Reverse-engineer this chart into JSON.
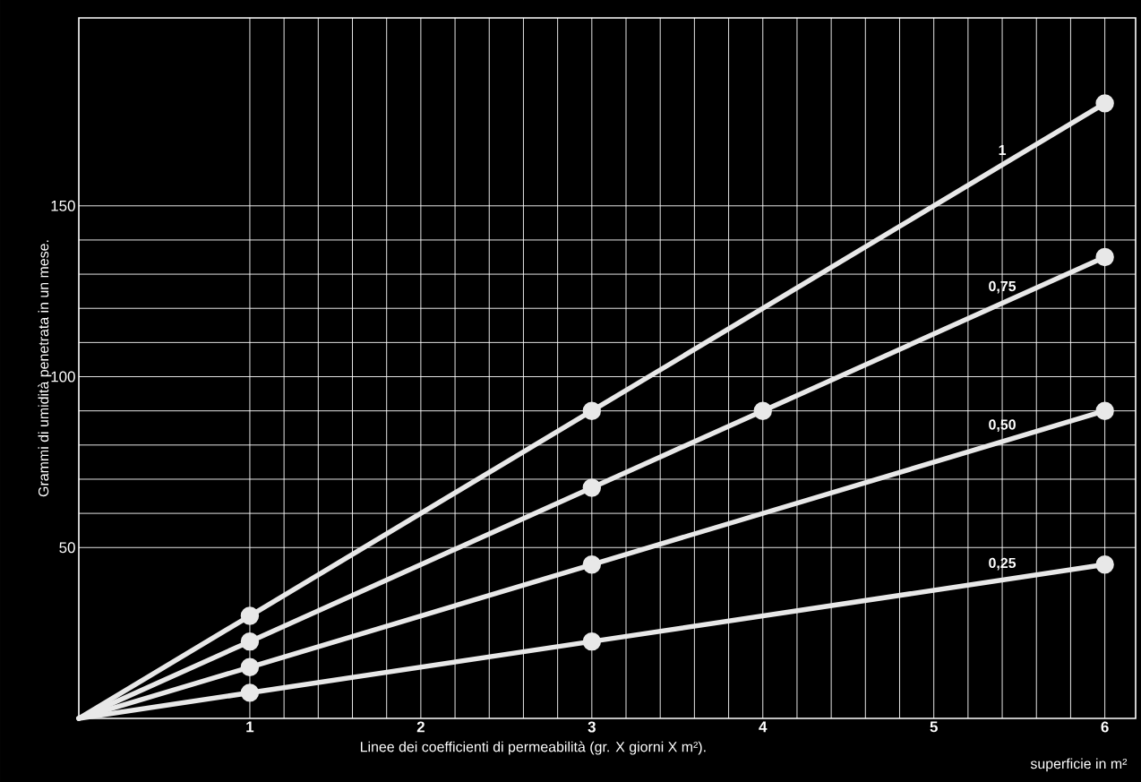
{
  "chart_data": {
    "type": "line",
    "ylabel": "Grammi di umidità penetrata in un mese.",
    "xlabel": "Linee dei coefficienti di permeabilità  (gr. X giorni X m²).",
    "annotations": [
      "superficie in m²"
    ],
    "series": [
      {
        "name": "1",
        "color": "#e8e8e8",
        "x": [
          0,
          1,
          3,
          6
        ],
        "values": [
          0,
          30,
          90,
          180
        ]
      },
      {
        "name": "0,75",
        "color": "#e8e8e8",
        "x": [
          0,
          1,
          3,
          4,
          6
        ],
        "values": [
          0,
          22.5,
          67.5,
          90,
          135
        ]
      },
      {
        "name": "0,50",
        "color": "#e8e8e8",
        "x": [
          0,
          1,
          3,
          6
        ],
        "values": [
          0,
          15,
          45,
          90
        ]
      },
      {
        "name": "0,25",
        "color": "#e8e8e8",
        "x": [
          0,
          1,
          3,
          6
        ],
        "values": [
          0,
          7.5,
          22.5,
          45
        ]
      }
    ],
    "xlim": [
      0,
      6.18
    ],
    "ylim": [
      0,
      205
    ],
    "xticks": [
      1,
      2,
      3,
      4,
      5,
      6
    ],
    "yticks": [
      50,
      100,
      150
    ],
    "grid": true,
    "marker": "circle",
    "line_style": "solid"
  }
}
